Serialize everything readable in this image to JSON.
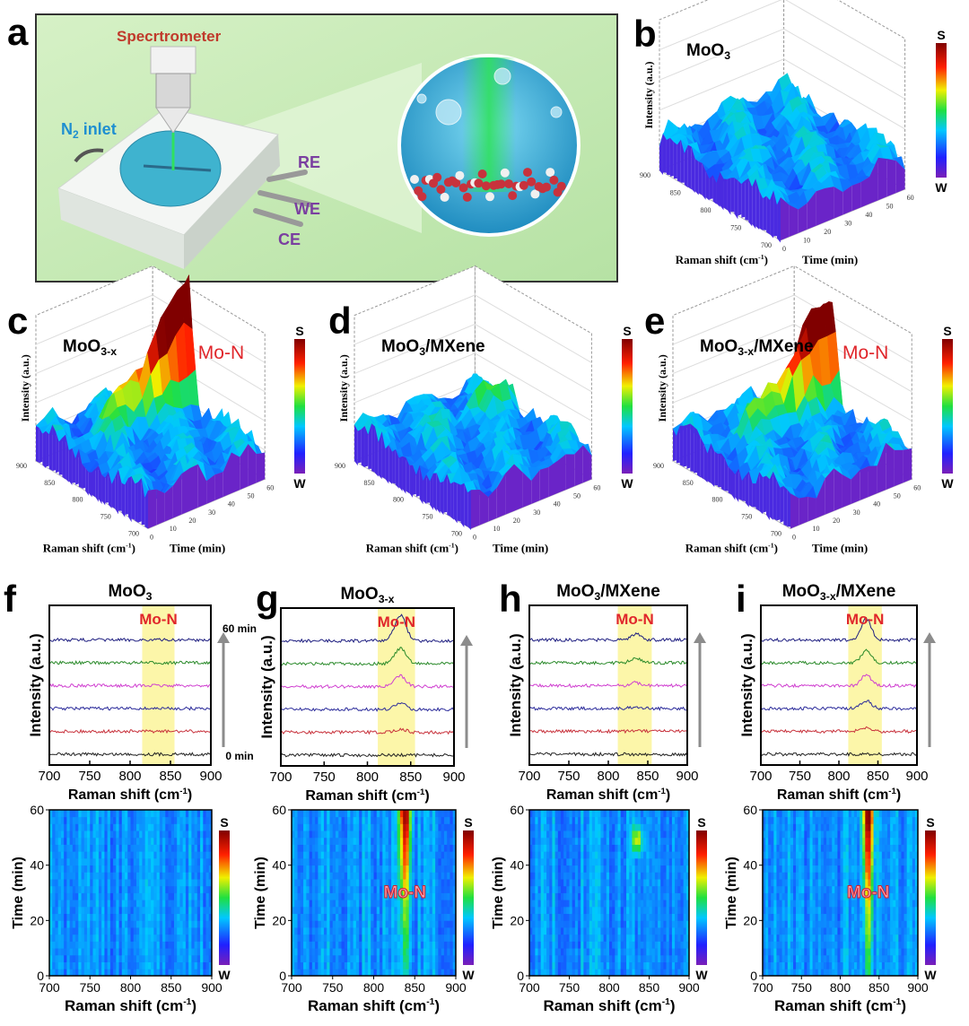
{
  "colors": {
    "mo_n": "#e0262b",
    "band": "#fbf59a",
    "frame_green": "#c9ebb6",
    "label_purple": "#7a3fa0",
    "label_blue": "#1f8fd0",
    "label_red": "#c0392b",
    "arrow": "#8c8c8c"
  },
  "panel_a": {
    "letter": "a",
    "spectrometer": "Specrtrometer",
    "n2_main": "N",
    "n2_sub": "2",
    "n2_rest": " inlet",
    "re": "RE",
    "we": "WE",
    "ce": "CE"
  },
  "colorbar": {
    "top": "S",
    "bottom": "W"
  },
  "surface_axes": {
    "zlabel": "Intensity (a.u.)",
    "xlabel": "Raman shift (cm",
    "xlabel_sup": "-1",
    "xlabel_end": ")",
    "ylabel": "Time (min)",
    "x_ticks": [
      "900",
      "850",
      "800",
      "750",
      "700"
    ],
    "y_ticks": [
      "0",
      "10",
      "20",
      "30",
      "40",
      "50",
      "60"
    ]
  },
  "spectra_axes": {
    "ylabel": "Intensity (a.u.)",
    "xlabel": "Raman shift (cm",
    "xlabel_sup": "-1",
    "xlabel_end": ")",
    "x_ticks": [
      "700",
      "750",
      "800",
      "850",
      "900"
    ],
    "start_label": "0 min",
    "end_label": "60 min",
    "band_label": "Mo-N"
  },
  "heatmap_axes": {
    "ylabel": "Time (min)",
    "xlabel": "Raman shift (cm",
    "xlabel_sup": "-1",
    "xlabel_end": ")",
    "x_ticks": [
      "700",
      "750",
      "800",
      "850",
      "900"
    ],
    "y_ticks": [
      "0",
      "20",
      "40",
      "60"
    ],
    "annotation": "Mo-N"
  },
  "chart_data": [
    {
      "panel": "b",
      "type": "surface",
      "title_main": "MoO",
      "title_sub": "3",
      "title_suffix": "",
      "annotation": "",
      "x_range": [
        700,
        900
      ],
      "y_range": [
        0,
        60
      ],
      "peak_center": 838,
      "peak_max": 0.0
    },
    {
      "panel": "c",
      "type": "surface",
      "title_main": "MoO",
      "title_sub": "3-x",
      "title_suffix": "",
      "annotation": "Mo-N",
      "x_range": [
        700,
        900
      ],
      "y_range": [
        0,
        60
      ],
      "peak_center": 838,
      "peak_max": 0.75
    },
    {
      "panel": "d",
      "type": "surface",
      "title_main": "MoO",
      "title_sub": "3",
      "title_suffix": "/MXene",
      "annotation": "",
      "x_range": [
        700,
        900
      ],
      "y_range": [
        0,
        60
      ],
      "peak_center": 838,
      "peak_max": 0.15
    },
    {
      "panel": "e",
      "type": "surface",
      "title_main": "MoO",
      "title_sub": "3-x",
      "title_suffix": "/MXene",
      "annotation": "Mo-N",
      "x_range": [
        700,
        900
      ],
      "y_range": [
        0,
        60
      ],
      "peak_center": 838,
      "peak_max": 0.65
    },
    {
      "panel": "f",
      "type": "line",
      "title_main": "MoO",
      "title_sub": "3",
      "title_suffix": "",
      "x_range": [
        700,
        900
      ],
      "band": [
        815,
        855
      ],
      "times_min": [
        0,
        12,
        24,
        36,
        48,
        60
      ],
      "series_colors": [
        "#222222",
        "#c8323c",
        "#2a2a9a",
        "#d040d0",
        "#2a8a2a",
        "#1e1e80"
      ],
      "peak_center": 838,
      "peak_amplitudes": [
        0,
        0,
        0,
        0,
        0,
        0
      ]
    },
    {
      "panel": "g",
      "type": "line",
      "title_main": "MoO",
      "title_sub": "3-x",
      "title_suffix": "",
      "x_range": [
        700,
        900
      ],
      "band": [
        812,
        855
      ],
      "times_min": [
        0,
        12,
        24,
        36,
        48,
        60
      ],
      "series_colors": [
        "#222222",
        "#c8323c",
        "#2a2a9a",
        "#d040d0",
        "#2a8a2a",
        "#1e1e80"
      ],
      "peak_center": 838,
      "peak_amplitudes": [
        0,
        0.1,
        0.2,
        0.35,
        0.5,
        0.85
      ]
    },
    {
      "panel": "h",
      "type": "line",
      "title_main": "MoO",
      "title_sub": "3",
      "title_suffix": "/MXene",
      "x_range": [
        700,
        900
      ],
      "band": [
        812,
        855
      ],
      "times_min": [
        0,
        12,
        24,
        36,
        48,
        60
      ],
      "series_colors": [
        "#222222",
        "#c8323c",
        "#2a2a9a",
        "#d040d0",
        "#2a8a2a",
        "#1e1e80"
      ],
      "peak_center": 835,
      "peak_amplitudes": [
        0,
        0.03,
        0.06,
        0.1,
        0.15,
        0.2
      ]
    },
    {
      "panel": "i",
      "type": "line",
      "title_main": "MoO",
      "title_sub": "3-x",
      "title_suffix": "/MXene",
      "x_range": [
        700,
        900
      ],
      "band": [
        812,
        855
      ],
      "times_min": [
        0,
        12,
        24,
        36,
        48,
        60
      ],
      "series_colors": [
        "#222222",
        "#c8323c",
        "#2a2a9a",
        "#d040d0",
        "#2a8a2a",
        "#1e1e80"
      ],
      "peak_center": 835,
      "peak_amplitudes": [
        0,
        0.12,
        0.25,
        0.35,
        0.4,
        0.7
      ]
    },
    {
      "panel": "f2",
      "type": "heatmap",
      "x_range": [
        700,
        900
      ],
      "y_range": [
        0,
        60
      ],
      "peak_center": 838,
      "peak_max": 0.0,
      "annotate": false
    },
    {
      "panel": "g2",
      "type": "heatmap",
      "x_range": [
        700,
        900
      ],
      "y_range": [
        0,
        60
      ],
      "peak_center": 838,
      "peak_max": 0.75,
      "annotate": true
    },
    {
      "panel": "h2",
      "type": "heatmap",
      "x_range": [
        700,
        900
      ],
      "y_range": [
        0,
        60
      ],
      "peak_center": 835,
      "peak_max": 0.3,
      "annotate": false
    },
    {
      "panel": "i2",
      "type": "heatmap",
      "x_range": [
        700,
        900
      ],
      "y_range": [
        0,
        60
      ],
      "peak_center": 836,
      "peak_max": 0.75,
      "annotate": true
    }
  ]
}
